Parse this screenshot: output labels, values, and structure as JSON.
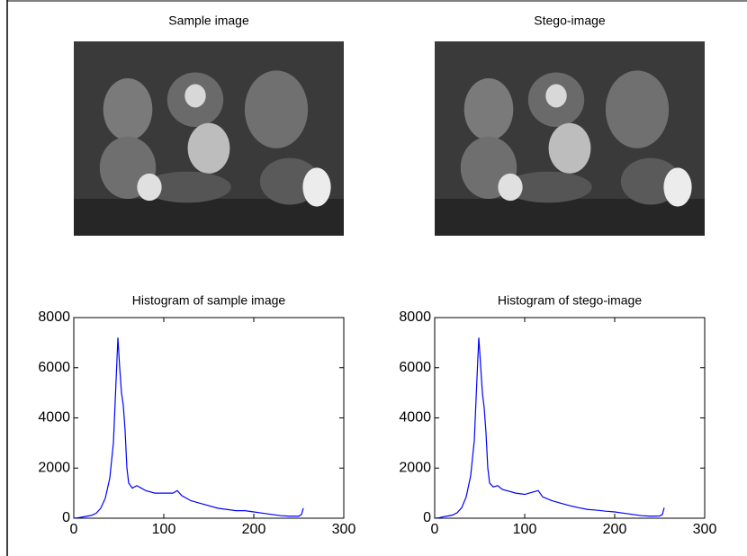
{
  "chart_data": [
    {
      "type": "image",
      "title": "Sample image"
    },
    {
      "type": "image",
      "title": "Stego-image"
    },
    {
      "type": "line",
      "title": "Histogram of sample image",
      "color": "#0000ff",
      "x": [
        0,
        5,
        10,
        15,
        20,
        25,
        30,
        35,
        40,
        44,
        47,
        49,
        51,
        53,
        55,
        57,
        59,
        61,
        65,
        70,
        75,
        80,
        90,
        100,
        110,
        115,
        120,
        130,
        140,
        150,
        160,
        170,
        180,
        190,
        200,
        210,
        220,
        230,
        240,
        250,
        253,
        255
      ],
      "values": [
        0,
        20,
        50,
        80,
        120,
        200,
        400,
        800,
        1600,
        3000,
        5500,
        7200,
        6000,
        5000,
        4500,
        3500,
        2000,
        1400,
        1200,
        1300,
        1200,
        1100,
        1000,
        1000,
        1000,
        1100,
        900,
        700,
        600,
        500,
        400,
        350,
        300,
        300,
        250,
        200,
        150,
        100,
        80,
        80,
        150,
        400
      ],
      "xlim": [
        0,
        300
      ],
      "xticks": [
        0,
        100,
        200,
        300
      ],
      "ylim": [
        0,
        8000
      ],
      "yticks": [
        0,
        2000,
        4000,
        6000,
        8000
      ]
    },
    {
      "type": "line",
      "title": "Histogram of stego-image",
      "color": "#0000ff",
      "x": [
        0,
        5,
        10,
        15,
        20,
        25,
        30,
        35,
        40,
        44,
        47,
        49,
        51,
        53,
        55,
        57,
        59,
        61,
        65,
        70,
        75,
        80,
        90,
        100,
        110,
        115,
        120,
        130,
        140,
        150,
        160,
        170,
        180,
        190,
        200,
        210,
        220,
        230,
        240,
        250,
        253,
        255
      ],
      "values": [
        0,
        20,
        60,
        90,
        130,
        220,
        420,
        850,
        1700,
        3100,
        5600,
        7200,
        6100,
        5000,
        4400,
        3400,
        2000,
        1400,
        1250,
        1300,
        1150,
        1100,
        1000,
        950,
        1050,
        1100,
        850,
        700,
        600,
        500,
        420,
        350,
        320,
        280,
        250,
        200,
        150,
        100,
        80,
        90,
        150,
        420
      ],
      "xlim": [
        0,
        300
      ],
      "xticks": [
        0,
        100,
        200,
        300
      ],
      "ylim": [
        0,
        8000
      ],
      "yticks": [
        0,
        2000,
        4000,
        6000,
        8000
      ]
    }
  ]
}
